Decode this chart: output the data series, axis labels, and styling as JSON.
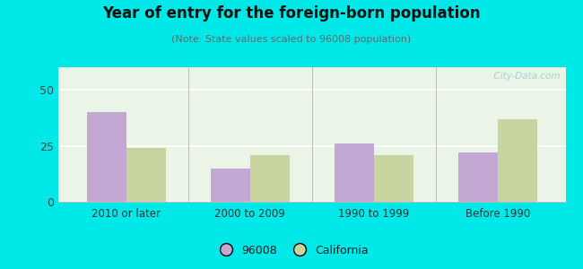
{
  "title": "Year of entry for the foreign-born population",
  "subtitle": "(Note: State values scaled to 96008 population)",
  "categories": [
    "2010 or later",
    "2000 to 2009",
    "1990 to 1999",
    "Before 1990"
  ],
  "values_96008": [
    40,
    15,
    26,
    22
  ],
  "values_california": [
    24,
    21,
    21,
    37
  ],
  "color_96008": "#c4a8d4",
  "color_california": "#c8d4a0",
  "background_outer": "#00e8e8",
  "background_plot_top": "#f0f8f0",
  "background_plot_bottom": "#e0efd8",
  "ylim": [
    0,
    60
  ],
  "yticks": [
    0,
    25,
    50
  ],
  "bar_width": 0.32,
  "legend_labels": [
    "96008",
    "California"
  ],
  "watermark": "  City-Data.com"
}
